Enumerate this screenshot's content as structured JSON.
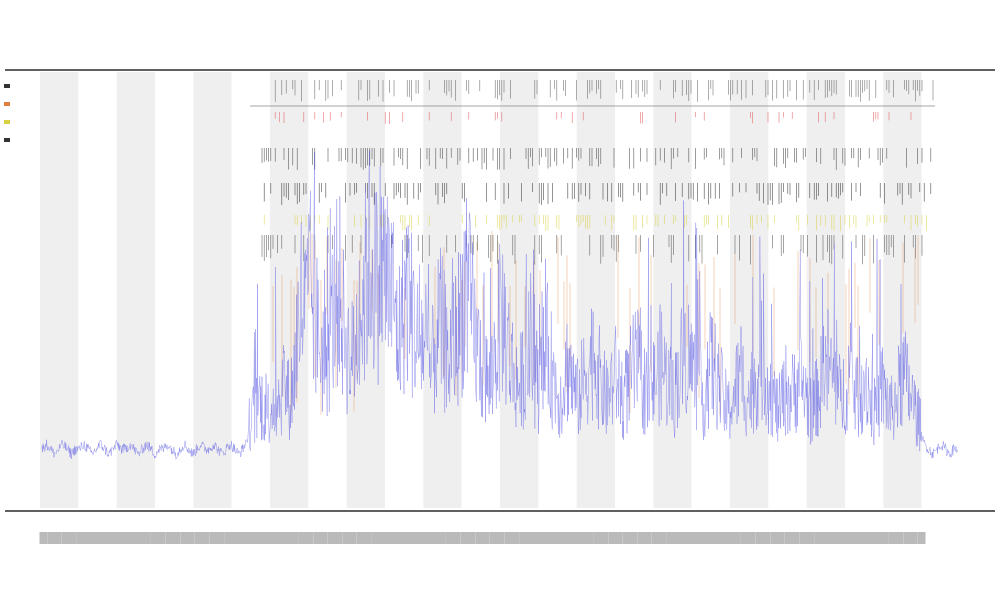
{
  "chart_data": {
    "type": "line",
    "title_lines": [
      "",
      "",
      ""
    ],
    "xlabel": "",
    "ylabel": "",
    "grid": false,
    "legend_placement": "top-left",
    "band_count": 24,
    "tick_count": 880,
    "series": [
      {
        "color": "#6f6fe6",
        "values": [
          5,
          6,
          5,
          4,
          5,
          6,
          5,
          4,
          5,
          5,
          6,
          5,
          4,
          5,
          6,
          5,
          4,
          5,
          6,
          5,
          5,
          6,
          5,
          4,
          5,
          6,
          5,
          4,
          5,
          5,
          6,
          5,
          4,
          5,
          6,
          5,
          4,
          5,
          6,
          5,
          5,
          6,
          5,
          4,
          5,
          6,
          5,
          4,
          5,
          7,
          9,
          10,
          12,
          11,
          10,
          12,
          11,
          13,
          15,
          12,
          14,
          22,
          28,
          25,
          30,
          26,
          22,
          20,
          18,
          22,
          28,
          30,
          24,
          20,
          18,
          21,
          26,
          28,
          35,
          33,
          30,
          34,
          32,
          30,
          28,
          22,
          24,
          30,
          27,
          24,
          20,
          22,
          18,
          16,
          20,
          24,
          22,
          18,
          20,
          22,
          25,
          30,
          28,
          24,
          20,
          18,
          16,
          14,
          18,
          22,
          26,
          22,
          18,
          16,
          14,
          16,
          20,
          18,
          16,
          14,
          18,
          20,
          16,
          14,
          12,
          16,
          18,
          14,
          12,
          14,
          16,
          18,
          20,
          16,
          14,
          12,
          14,
          16,
          14,
          12,
          14,
          16,
          18,
          16,
          14,
          12,
          14,
          16,
          18,
          16,
          14,
          12,
          16,
          18,
          20,
          18,
          16,
          14,
          12,
          14,
          18,
          16,
          14,
          12,
          10,
          12,
          14,
          16,
          14,
          12,
          14,
          16,
          18,
          16,
          14,
          12,
          10,
          12,
          14,
          12,
          14,
          16,
          14,
          12,
          10,
          12,
          14,
          16,
          18,
          16,
          14,
          12,
          14,
          16,
          14,
          12,
          14,
          16,
          12,
          10,
          12,
          14,
          12,
          10,
          12,
          14,
          16,
          14,
          12,
          10,
          8,
          6,
          5,
          4,
          5,
          6,
          5,
          4,
          5,
          5
        ]
      },
      {
        "color": "#e08040",
        "values": []
      },
      {
        "color": "#d8d040",
        "values": []
      },
      {
        "color": "#333333",
        "values": []
      }
    ],
    "legend": {
      "entries": []
    },
    "colors": {
      "band": "#efefef",
      "axis": "#000000",
      "line": "#6f6fe6",
      "orange": "#e08040",
      "yellow": "#d8d040",
      "red": "#e05050",
      "tick": "#333333"
    }
  }
}
